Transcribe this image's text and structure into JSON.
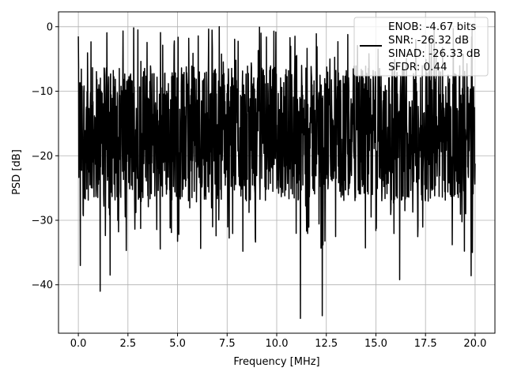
{
  "chart_data": {
    "type": "line",
    "xlabel": "Frequency [MHz]",
    "ylabel": "PSD [dB]",
    "xlim": [
      -1.0,
      21.0
    ],
    "ylim": [
      -47.5,
      2.3
    ],
    "x_ticks": [
      0.0,
      2.5,
      5.0,
      7.5,
      10.0,
      12.5,
      15.0,
      17.5,
      20.0
    ],
    "x_tick_labels": [
      "0.0",
      "2.5",
      "5.0",
      "7.5",
      "10.0",
      "12.5",
      "15.0",
      "17.5",
      "20.0"
    ],
    "y_ticks": [
      0,
      -10,
      -20,
      -30,
      -40
    ],
    "y_tick_labels": [
      "0",
      "−10",
      "−20",
      "−30",
      "−40"
    ],
    "grid": true,
    "legend_position": "top-right",
    "legend_entries": [
      "ENOB: -4.67 bits",
      "SNR: -26.32 dB",
      "SINAD: -26.33 dB",
      "SFDR: 0.44"
    ],
    "series": [
      {
        "color": "#000000",
        "x_range": [
          0.0,
          20.0
        ],
        "y_band_typical": [
          -27.0,
          -6.0
        ],
        "max": 0.0,
        "min": -45.2,
        "notable_points": [
          {
            "x": 0.0,
            "y": -1.5
          },
          {
            "x": 0.1,
            "y": -37.0
          },
          {
            "x": 1.1,
            "y": -41.0
          },
          {
            "x": 1.6,
            "y": -38.5
          },
          {
            "x": 7.1,
            "y": 0.0
          },
          {
            "x": 9.2,
            "y": -1.0
          },
          {
            "x": 11.2,
            "y": -45.2
          },
          {
            "x": 12.3,
            "y": -44.8
          },
          {
            "x": 16.2,
            "y": -39.2
          },
          {
            "x": 19.8,
            "y": -38.6
          }
        ]
      }
    ]
  }
}
